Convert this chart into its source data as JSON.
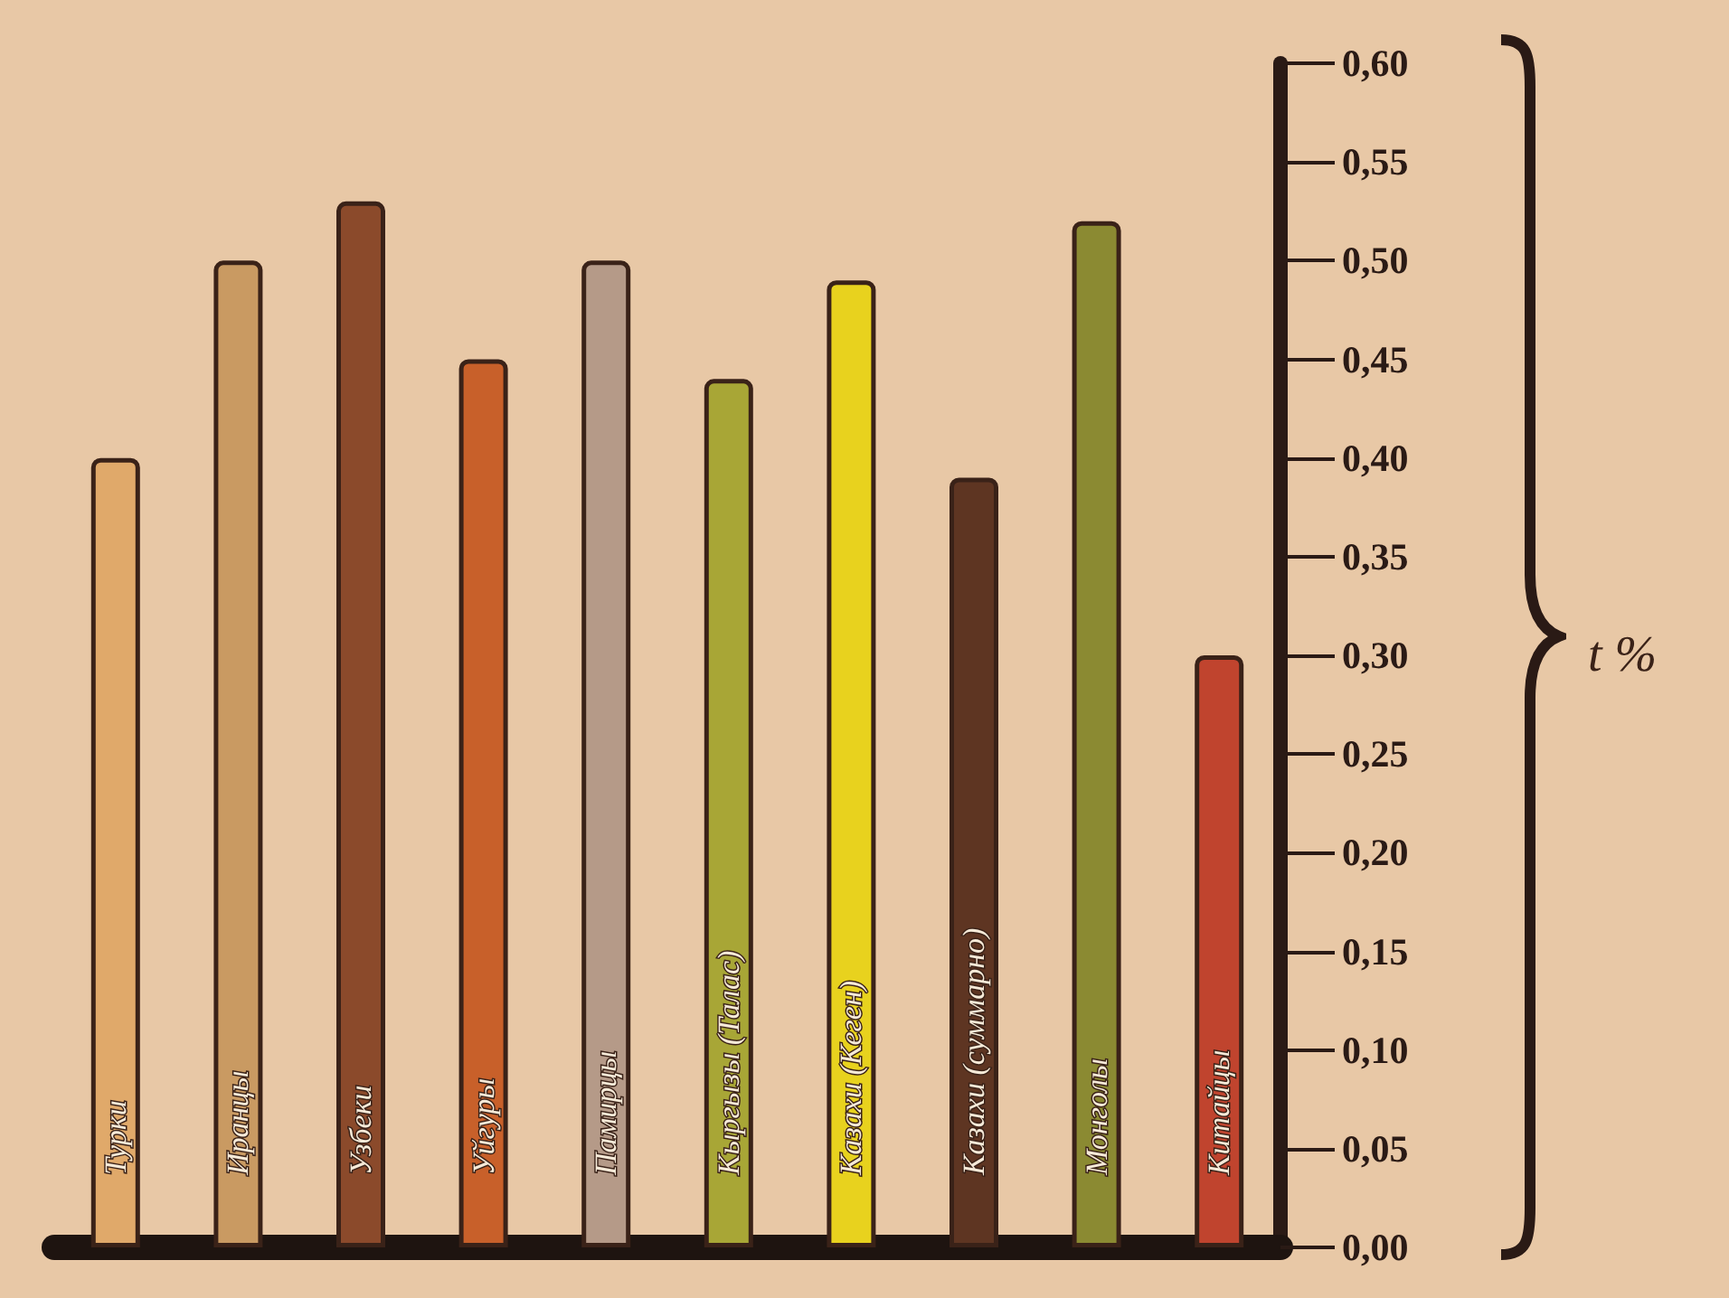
{
  "chart_data": {
    "type": "bar",
    "ylabel": "t %",
    "categories": [
      "Турки",
      "Иранцы",
      "Узбеки",
      "Уйгуры",
      "Памирцы",
      "Кыргызы (Талас)",
      "Казахи (Кеген)",
      "Казахи (суммарно)",
      "Монголы",
      "Китайцы"
    ],
    "values": [
      0.4,
      0.5,
      0.53,
      0.45,
      0.5,
      0.44,
      0.49,
      0.39,
      0.52,
      0.3
    ],
    "colors": [
      "#e0a96a",
      "#c99a62",
      "#8b4a2b",
      "#c8602a",
      "#b59a88",
      "#a8a636",
      "#e8d21e",
      "#5e3522",
      "#8b8a32",
      "#c0442e"
    ],
    "ylim": [
      0,
      0.6
    ],
    "yticks": [
      {
        "value": 0,
        "label": "0,00"
      },
      {
        "value": 0.05,
        "label": "0,05"
      },
      {
        "value": 0.1,
        "label": "0,10"
      },
      {
        "value": 0.15,
        "label": "0,15"
      },
      {
        "value": 0.2,
        "label": "0,20"
      },
      {
        "value": 0.25,
        "label": "0,25"
      },
      {
        "value": 0.3,
        "label": "0,30"
      },
      {
        "value": 0.35,
        "label": "0,35"
      },
      {
        "value": 0.4,
        "label": "0,40"
      },
      {
        "value": 0.45,
        "label": "0,45"
      },
      {
        "value": 0.5,
        "label": "0,50"
      },
      {
        "value": 0.55,
        "label": "0,55"
      },
      {
        "value": 0.6,
        "label": "0,60"
      }
    ],
    "grid": false
  }
}
